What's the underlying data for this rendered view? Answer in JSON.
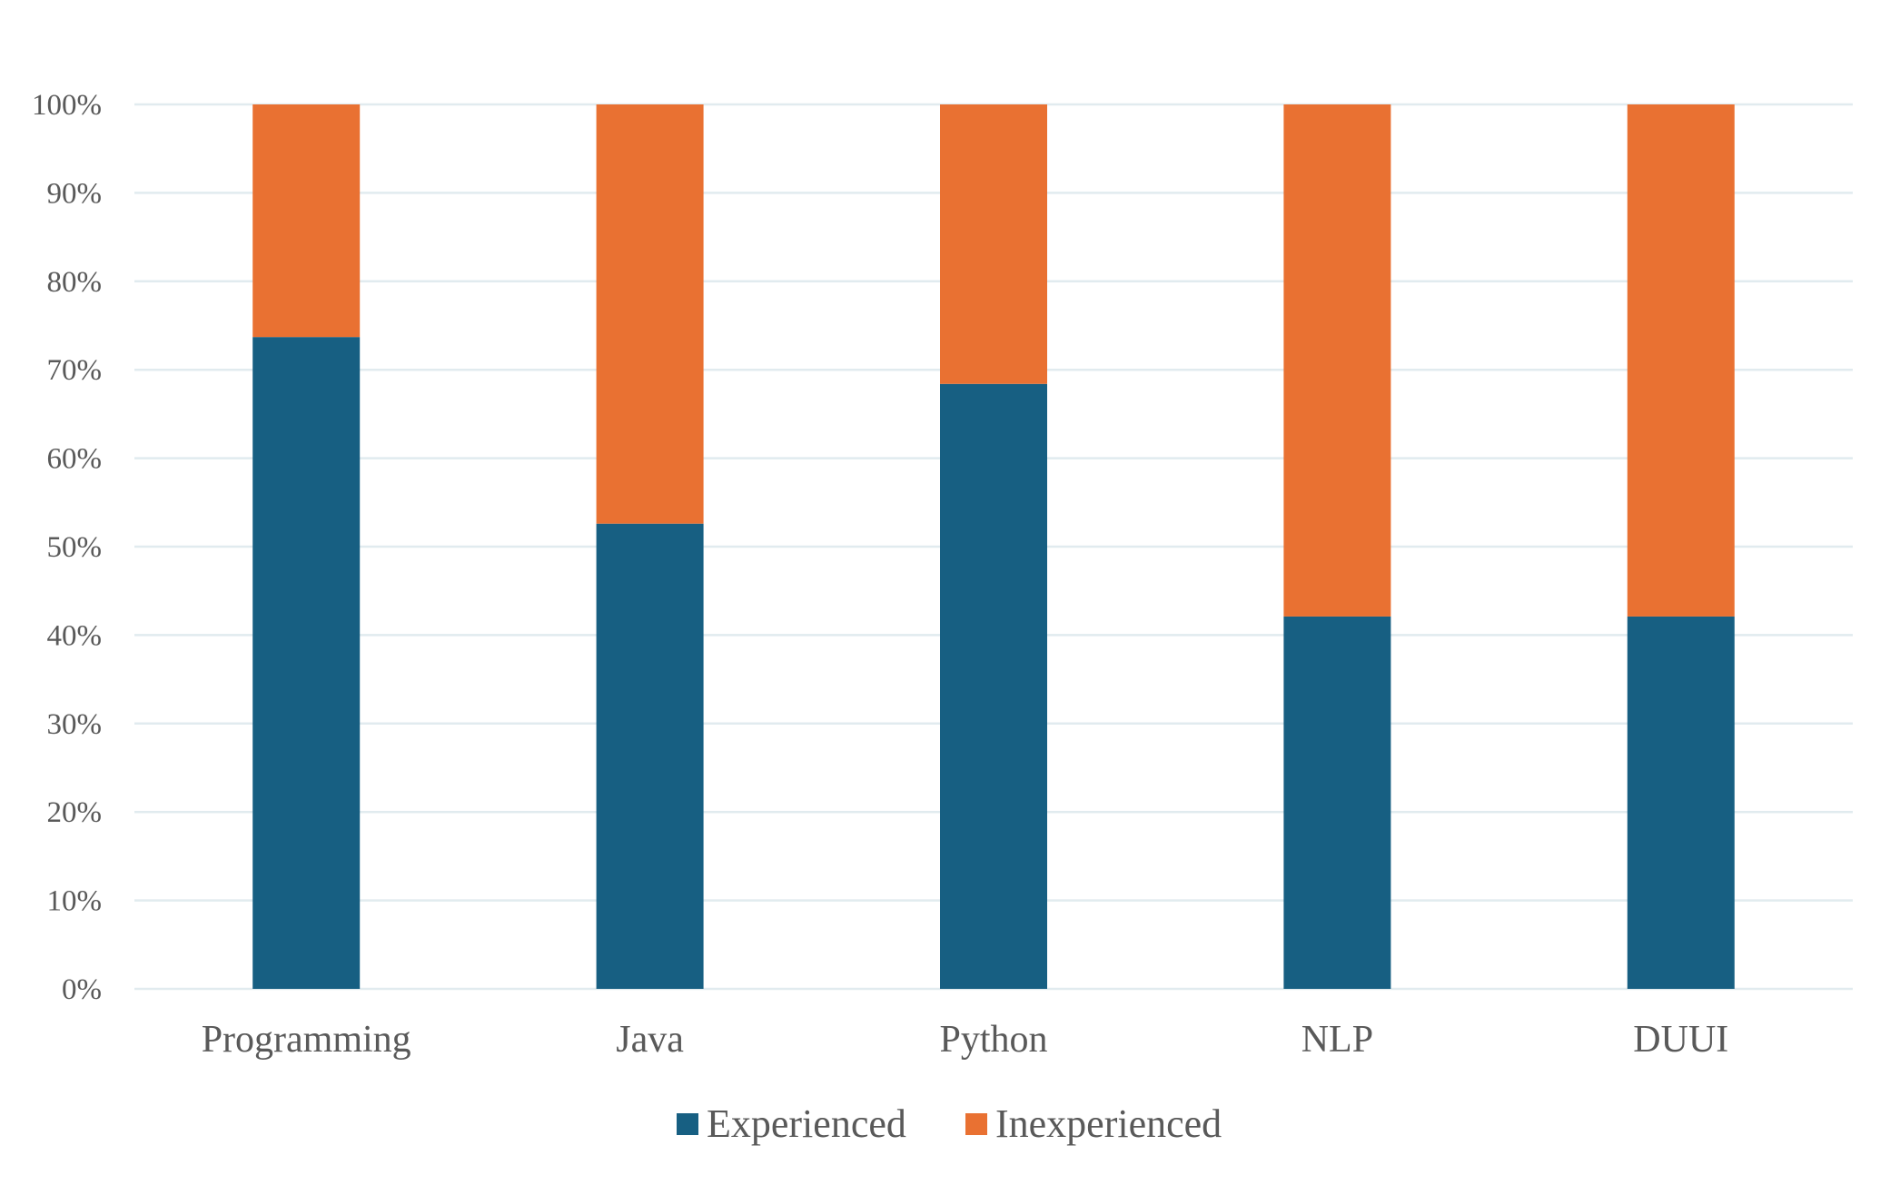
{
  "chart_data": {
    "type": "bar",
    "stacked": true,
    "percent_stacked": true,
    "categories": [
      "Programming",
      "Java",
      "Python",
      "NLP",
      "DUUI"
    ],
    "series": [
      {
        "name": "Experienced",
        "color": "#175f82",
        "values": [
          73.7,
          52.6,
          68.4,
          42.1,
          42.1
        ]
      },
      {
        "name": "Inexperienced",
        "color": "#e97132",
        "values": [
          26.3,
          47.4,
          31.6,
          57.9,
          57.9
        ]
      }
    ],
    "ylim": [
      0,
      100
    ],
    "y_ticks": [
      {
        "value": 0,
        "label": "0%"
      },
      {
        "value": 10,
        "label": "10%"
      },
      {
        "value": 20,
        "label": "20%"
      },
      {
        "value": 30,
        "label": "30%"
      },
      {
        "value": 40,
        "label": "40%"
      },
      {
        "value": 50,
        "label": "50%"
      },
      {
        "value": 60,
        "label": "60%"
      },
      {
        "value": 70,
        "label": "70%"
      },
      {
        "value": 80,
        "label": "80%"
      },
      {
        "value": 90,
        "label": "90%"
      },
      {
        "value": 100,
        "label": "100%"
      }
    ],
    "grid": true,
    "grid_color": "#e1ebef",
    "legend_position": "bottom",
    "title": "",
    "xlabel": "",
    "ylabel": ""
  }
}
